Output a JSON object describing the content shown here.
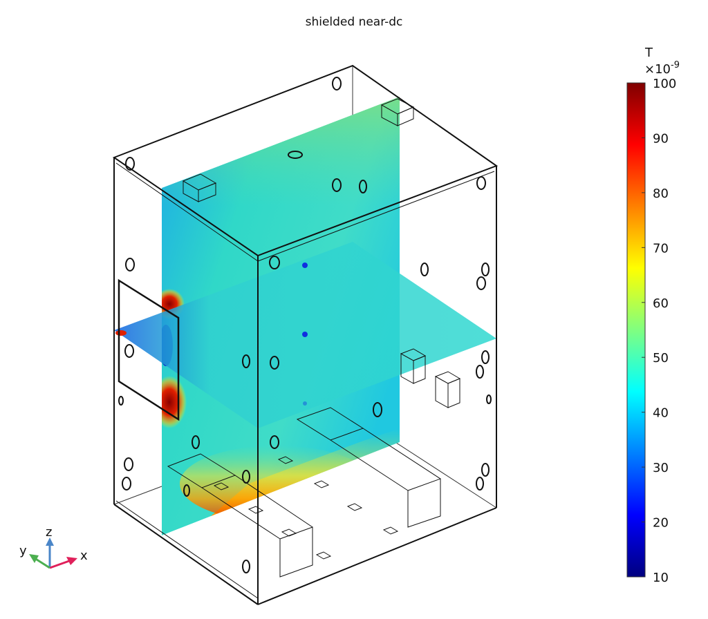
{
  "chart_data": {
    "type": "heatmap",
    "title": "shielded near-dc",
    "colorbar": {
      "unit": "T",
      "multiplier": "×10",
      "exponent": "-9",
      "range": [
        10,
        100
      ],
      "ticks": [
        10,
        20,
        30,
        40,
        50,
        60,
        70,
        80,
        90,
        100
      ],
      "colormap": "rainbow",
      "colors": [
        "#00007f",
        "#0000ff",
        "#0080ff",
        "#00ffff",
        "#80ff80",
        "#ffff00",
        "#ff8000",
        "#ff0000",
        "#7f0000"
      ]
    },
    "axes_triad": {
      "labels": [
        "x",
        "y",
        "z"
      ],
      "colors": {
        "x": "#e0205a",
        "y": "#4caf50",
        "z": "#4a86c8"
      }
    }
  }
}
